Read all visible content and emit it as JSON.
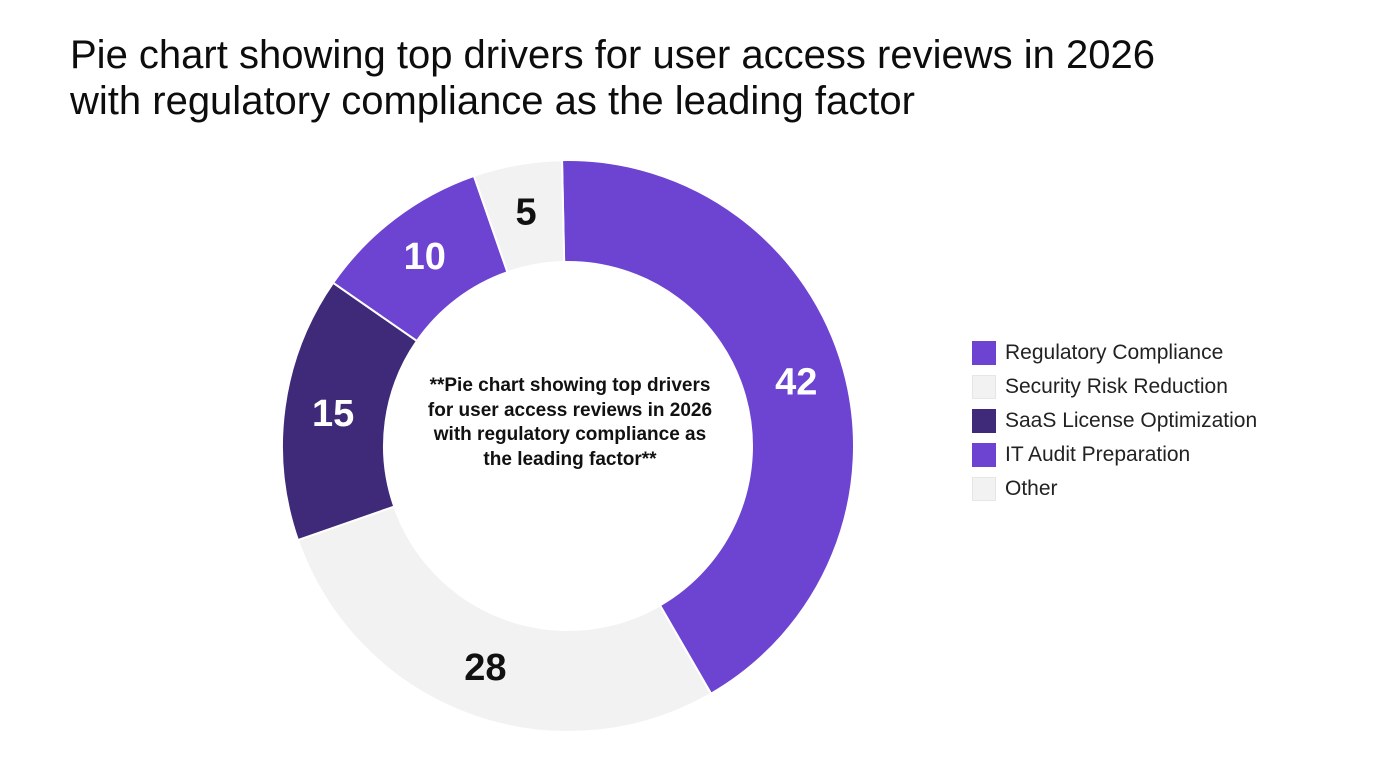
{
  "title": {
    "lines": [
      "Pie chart showing top drivers for user access reviews in 2026",
      "with regulatory compliance as the leading factor"
    ]
  },
  "center_caption": {
    "lines": [
      "**Pie chart showing top drivers",
      "for user access reviews in 2026",
      "with regulatory compliance as",
      "the leading factor**"
    ]
  },
  "colors": {
    "purple": "#6d44d1",
    "dark_purple": "#3e2a78",
    "light_gray": "#f2f2f2",
    "light_gray_border": "#e6e6e6",
    "label_on_dark": "#ffffff",
    "label_on_light": "#111111"
  },
  "chart_data": {
    "type": "pie",
    "donut": true,
    "slices": [
      {
        "name": "Regulatory Compliance",
        "value": 42,
        "label": "42",
        "color": "#6d44d1"
      },
      {
        "name": "Security Risk Reduction",
        "value": 28,
        "label": "28",
        "color": "#f2f2f2"
      },
      {
        "name": "SaaS License Optimization",
        "value": 15,
        "label": "15",
        "color": "#3e2a78"
      },
      {
        "name": "IT Audit Preparation",
        "value": 10,
        "label": "10",
        "color": "#6d44d1"
      },
      {
        "name": "Other",
        "value": 5,
        "label": "5",
        "color": "#f2f2f2"
      }
    ],
    "legend": {
      "placement": "right",
      "items": [
        {
          "label": "Regulatory Compliance",
          "color": "#6d44d1"
        },
        {
          "label": "Security Risk Reduction",
          "color": "#f2f2f2"
        },
        {
          "label": "SaaS License Optimization",
          "color": "#3e2a78"
        },
        {
          "label": "IT Audit Preparation",
          "color": "#6d44d1"
        },
        {
          "label": "Other",
          "color": "#f2f2f2"
        }
      ]
    }
  }
}
